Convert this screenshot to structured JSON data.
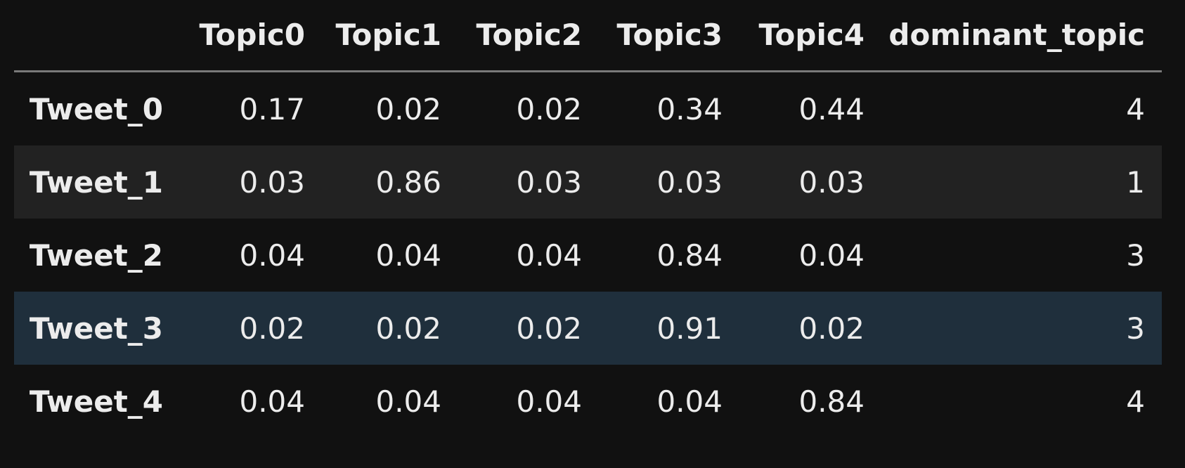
{
  "table": {
    "columns": [
      "",
      "Topic0",
      "Topic1",
      "Topic2",
      "Topic3",
      "Topic4",
      "dominant_topic"
    ],
    "rows": [
      {
        "index": "Tweet_0",
        "values": [
          "0.17",
          "0.02",
          "0.02",
          "0.34",
          "0.44",
          "4"
        ]
      },
      {
        "index": "Tweet_1",
        "values": [
          "0.03",
          "0.86",
          "0.03",
          "0.03",
          "0.03",
          "1"
        ]
      },
      {
        "index": "Tweet_2",
        "values": [
          "0.04",
          "0.04",
          "0.04",
          "0.84",
          "0.04",
          "3"
        ]
      },
      {
        "index": "Tweet_3",
        "values": [
          "0.02",
          "0.02",
          "0.02",
          "0.91",
          "0.02",
          "3"
        ]
      },
      {
        "index": "Tweet_4",
        "values": [
          "0.04",
          "0.04",
          "0.04",
          "0.04",
          "0.84",
          "4"
        ]
      }
    ],
    "highlighted_row": 3
  },
  "colors": {
    "background": "#111111",
    "striped_row": "#222222",
    "hover_row": "#1f2f3c",
    "text": "#ececec",
    "header_rule": "#7a7a7a"
  }
}
